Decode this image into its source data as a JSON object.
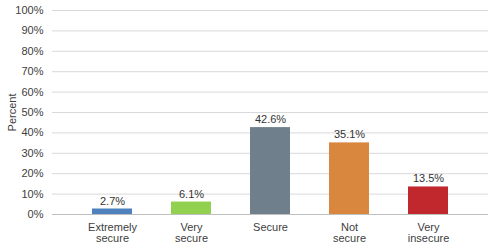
{
  "chart_data": {
    "type": "bar",
    "y_label": "Percent",
    "categories": [
      "Extremely secure",
      "Very secure",
      "Secure",
      "Not secure",
      "Very insecure"
    ],
    "values": [
      2.7,
      6.1,
      42.6,
      35.1,
      13.5
    ],
    "value_labels": [
      "2.7%",
      "6.1%",
      "42.6%",
      "35.1%",
      "13.5%"
    ],
    "colors": [
      "#4f81bd",
      "#92d050",
      "#6f7f8c",
      "#d9863f",
      "#c0282e"
    ],
    "ylim": [
      0,
      100
    ],
    "yticks": [
      {
        "value": 0,
        "label": "0%"
      },
      {
        "value": 10,
        "label": "10%"
      },
      {
        "value": 20,
        "label": "20%"
      },
      {
        "value": 30,
        "label": "30%"
      },
      {
        "value": 40,
        "label": "40%"
      },
      {
        "value": 50,
        "label": "50%"
      },
      {
        "value": 60,
        "label": "60%"
      },
      {
        "value": 70,
        "label": "70%"
      },
      {
        "value": 80,
        "label": "80%"
      },
      {
        "value": 90,
        "label": "90%"
      },
      {
        "value": 100,
        "label": "100%"
      }
    ],
    "grid": true,
    "data_labels": true
  }
}
